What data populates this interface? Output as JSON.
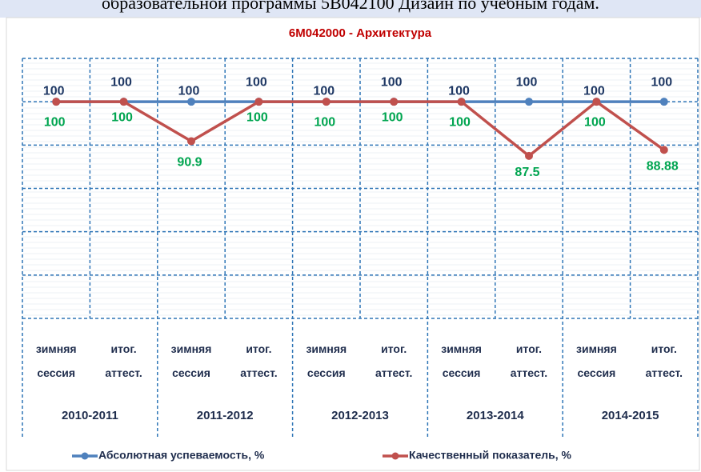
{
  "caption": "образовательной программы 5В042100 Дизайн по учебным годам.",
  "chart_data": {
    "type": "line",
    "title": "6M042000 - Архитектура",
    "categories": [
      "зимняя сессия",
      "итог. аттест.",
      "зимняя сессия",
      "итог. аттест.",
      "зимняя сессия",
      "итог. аттест.",
      "зимняя сессия",
      "итог. аттест.",
      "зимняя сессия",
      "итог. аттест."
    ],
    "groups": [
      "2010-2011",
      "2011-2012",
      "2012-2013",
      "2013-2014",
      "2014-2015"
    ],
    "series": [
      {
        "name": "Абсолютная успеваемость, %",
        "color": "#4f81bd",
        "label_color": "#1f3864",
        "values": [
          100,
          100,
          100,
          100,
          100,
          100,
          100,
          100,
          100,
          100
        ]
      },
      {
        "name": "Качественный показатель, %",
        "color": "#c0504d",
        "label_color": "#00a550",
        "values": [
          100,
          100,
          90.9,
          100,
          100,
          100,
          100,
          87.5,
          100,
          88.88
        ]
      }
    ],
    "ylim": [
      50,
      110
    ],
    "yticks": [
      50,
      60,
      70,
      80,
      90,
      100,
      110
    ],
    "grid": true,
    "legend": "bottom"
  }
}
